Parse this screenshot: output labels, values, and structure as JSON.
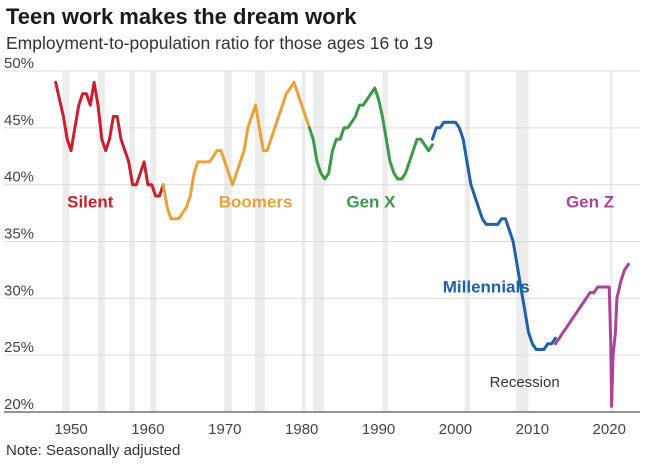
{
  "title": "Teen work makes the dream work",
  "subtitle": "Employment-to-population ratio for those ages 16 to 19",
  "note": "Note: Seasonally adjusted",
  "chart_data": {
    "type": "line",
    "xlabel": "",
    "ylabel": "",
    "xlim": [
      1947,
      2024
    ],
    "ylim": [
      20,
      50
    ],
    "x_ticks": [
      1950,
      1960,
      1970,
      1980,
      1990,
      2000,
      2010,
      2020
    ],
    "y_ticks": [
      20,
      25,
      30,
      35,
      40,
      45,
      50
    ],
    "y_tick_labels": [
      "20%",
      "25%",
      "30%",
      "35%",
      "40%",
      "45%",
      "50%"
    ],
    "grid": "horizontal",
    "recession_shading": [
      [
        1948.9,
        1949.8
      ],
      [
        1953.5,
        1954.4
      ],
      [
        1957.6,
        1958.3
      ],
      [
        1960.3,
        1961.1
      ],
      [
        1969.9,
        1970.9
      ],
      [
        1973.9,
        1975.2
      ],
      [
        1980.0,
        1980.5
      ],
      [
        1981.5,
        1982.9
      ],
      [
        1990.5,
        1991.2
      ],
      [
        2001.2,
        2001.9
      ],
      [
        2007.9,
        2009.5
      ],
      [
        2020.1,
        2020.4
      ]
    ],
    "annotation": "Recession",
    "series": [
      {
        "name": "Silent",
        "color": "#c8202e",
        "x": [
          1948,
          1948.5,
          1949,
          1949.5,
          1950,
          1950.5,
          1951,
          1951.5,
          1952,
          1952.5,
          1953,
          1953.5,
          1954,
          1954.5,
          1955,
          1955.5,
          1956,
          1956.5,
          1957,
          1957.5,
          1958,
          1958.5,
          1959,
          1959.5,
          1960,
          1960.5,
          1961,
          1961.5,
          1962
        ],
        "values": [
          49,
          47.5,
          46,
          44,
          43,
          45,
          47,
          48,
          48,
          47,
          49,
          47,
          44,
          43,
          44,
          46,
          46,
          44,
          43,
          42,
          40,
          40,
          41,
          42,
          40,
          40,
          39,
          39,
          40
        ]
      },
      {
        "name": "Boomers",
        "color": "#e8a23a",
        "x": [
          1962,
          1962.5,
          1963,
          1963.5,
          1964,
          1964.5,
          1965,
          1965.5,
          1966,
          1966.5,
          1967,
          1967.5,
          1968,
          1968.5,
          1969,
          1969.5,
          1970,
          1970.5,
          1971,
          1971.5,
          1972,
          1972.5,
          1973,
          1973.5,
          1974,
          1974.5,
          1975,
          1975.5,
          1976,
          1976.5,
          1977,
          1977.5,
          1978,
          1978.5,
          1979,
          1979.5,
          1980,
          1980.5,
          1981
        ],
        "values": [
          40,
          38,
          37,
          37,
          37,
          37.5,
          38,
          39,
          41,
          42,
          42,
          42,
          42,
          42.5,
          43,
          43,
          42,
          41,
          40,
          41,
          42,
          43,
          45,
          46,
          47,
          45,
          43,
          43,
          44,
          45,
          46,
          47,
          48,
          48.5,
          49,
          48,
          47,
          46,
          45
        ]
      },
      {
        "name": "Gen X",
        "color": "#3a9a48",
        "x": [
          1981,
          1981.5,
          1982,
          1982.5,
          1983,
          1983.5,
          1984,
          1984.5,
          1985,
          1985.5,
          1986,
          1986.5,
          1987,
          1987.5,
          1988,
          1988.5,
          1989,
          1989.5,
          1990,
          1990.5,
          1991,
          1991.5,
          1992,
          1992.5,
          1993,
          1993.5,
          1994,
          1994.5,
          1995,
          1995.5,
          1996,
          1996.5,
          1997
        ],
        "values": [
          45,
          44,
          42,
          41,
          40.5,
          41,
          43,
          44,
          44,
          45,
          45,
          45.5,
          46,
          47,
          47,
          47.5,
          48,
          48.5,
          47.5,
          46,
          44,
          42,
          41,
          40.5,
          40.5,
          41,
          42,
          43,
          44,
          44,
          43.5,
          43,
          43.5
        ]
      },
      {
        "name": "Millennials",
        "color": "#2060a8",
        "x": [
          1997,
          1997.5,
          1998,
          1998.5,
          1999,
          1999.5,
          2000,
          2000.5,
          2001,
          2001.5,
          2002,
          2002.5,
          2003,
          2003.5,
          2004,
          2004.5,
          2005,
          2005.5,
          2006,
          2006.5,
          2007,
          2007.5,
          2008,
          2008.5,
          2009,
          2009.5,
          2010,
          2010.5,
          2011,
          2011.5,
          2012,
          2012.5,
          2013
        ],
        "values": [
          44,
          45,
          45,
          45.5,
          45.5,
          45.5,
          45.5,
          45,
          44,
          42,
          40,
          39,
          38,
          37,
          36.5,
          36.5,
          36.5,
          36.5,
          37,
          37,
          36,
          35,
          33,
          31,
          29,
          27,
          26,
          25.5,
          25.5,
          25.5,
          26,
          26,
          26.5
        ]
      },
      {
        "name": "Gen Z",
        "color": "#a9449a",
        "x": [
          2013,
          2013.5,
          2014,
          2014.5,
          2015,
          2015.5,
          2016,
          2016.5,
          2017,
          2017.5,
          2018,
          2018.5,
          2019,
          2019.5,
          2020,
          2020.2,
          2020.3,
          2020.5,
          2020.8,
          2021,
          2021.5,
          2022,
          2022.5
        ],
        "values": [
          26,
          26.5,
          27,
          27.5,
          28,
          28.5,
          29,
          29.5,
          30,
          30.5,
          30.5,
          31,
          31,
          31,
          31,
          26,
          20.5,
          25,
          27,
          30,
          31.5,
          32.5,
          33
        ]
      }
    ],
    "label_positions": {
      "Silent": [
        1952.5,
        38
      ],
      "Boomers": [
        1974,
        38
      ],
      "Gen X": [
        1989,
        38
      ],
      "Millennials": [
        2004,
        30.5
      ],
      "Gen Z": [
        2017.5,
        38
      ]
    },
    "annotation_position": [
      2009,
      22.2
    ]
  }
}
